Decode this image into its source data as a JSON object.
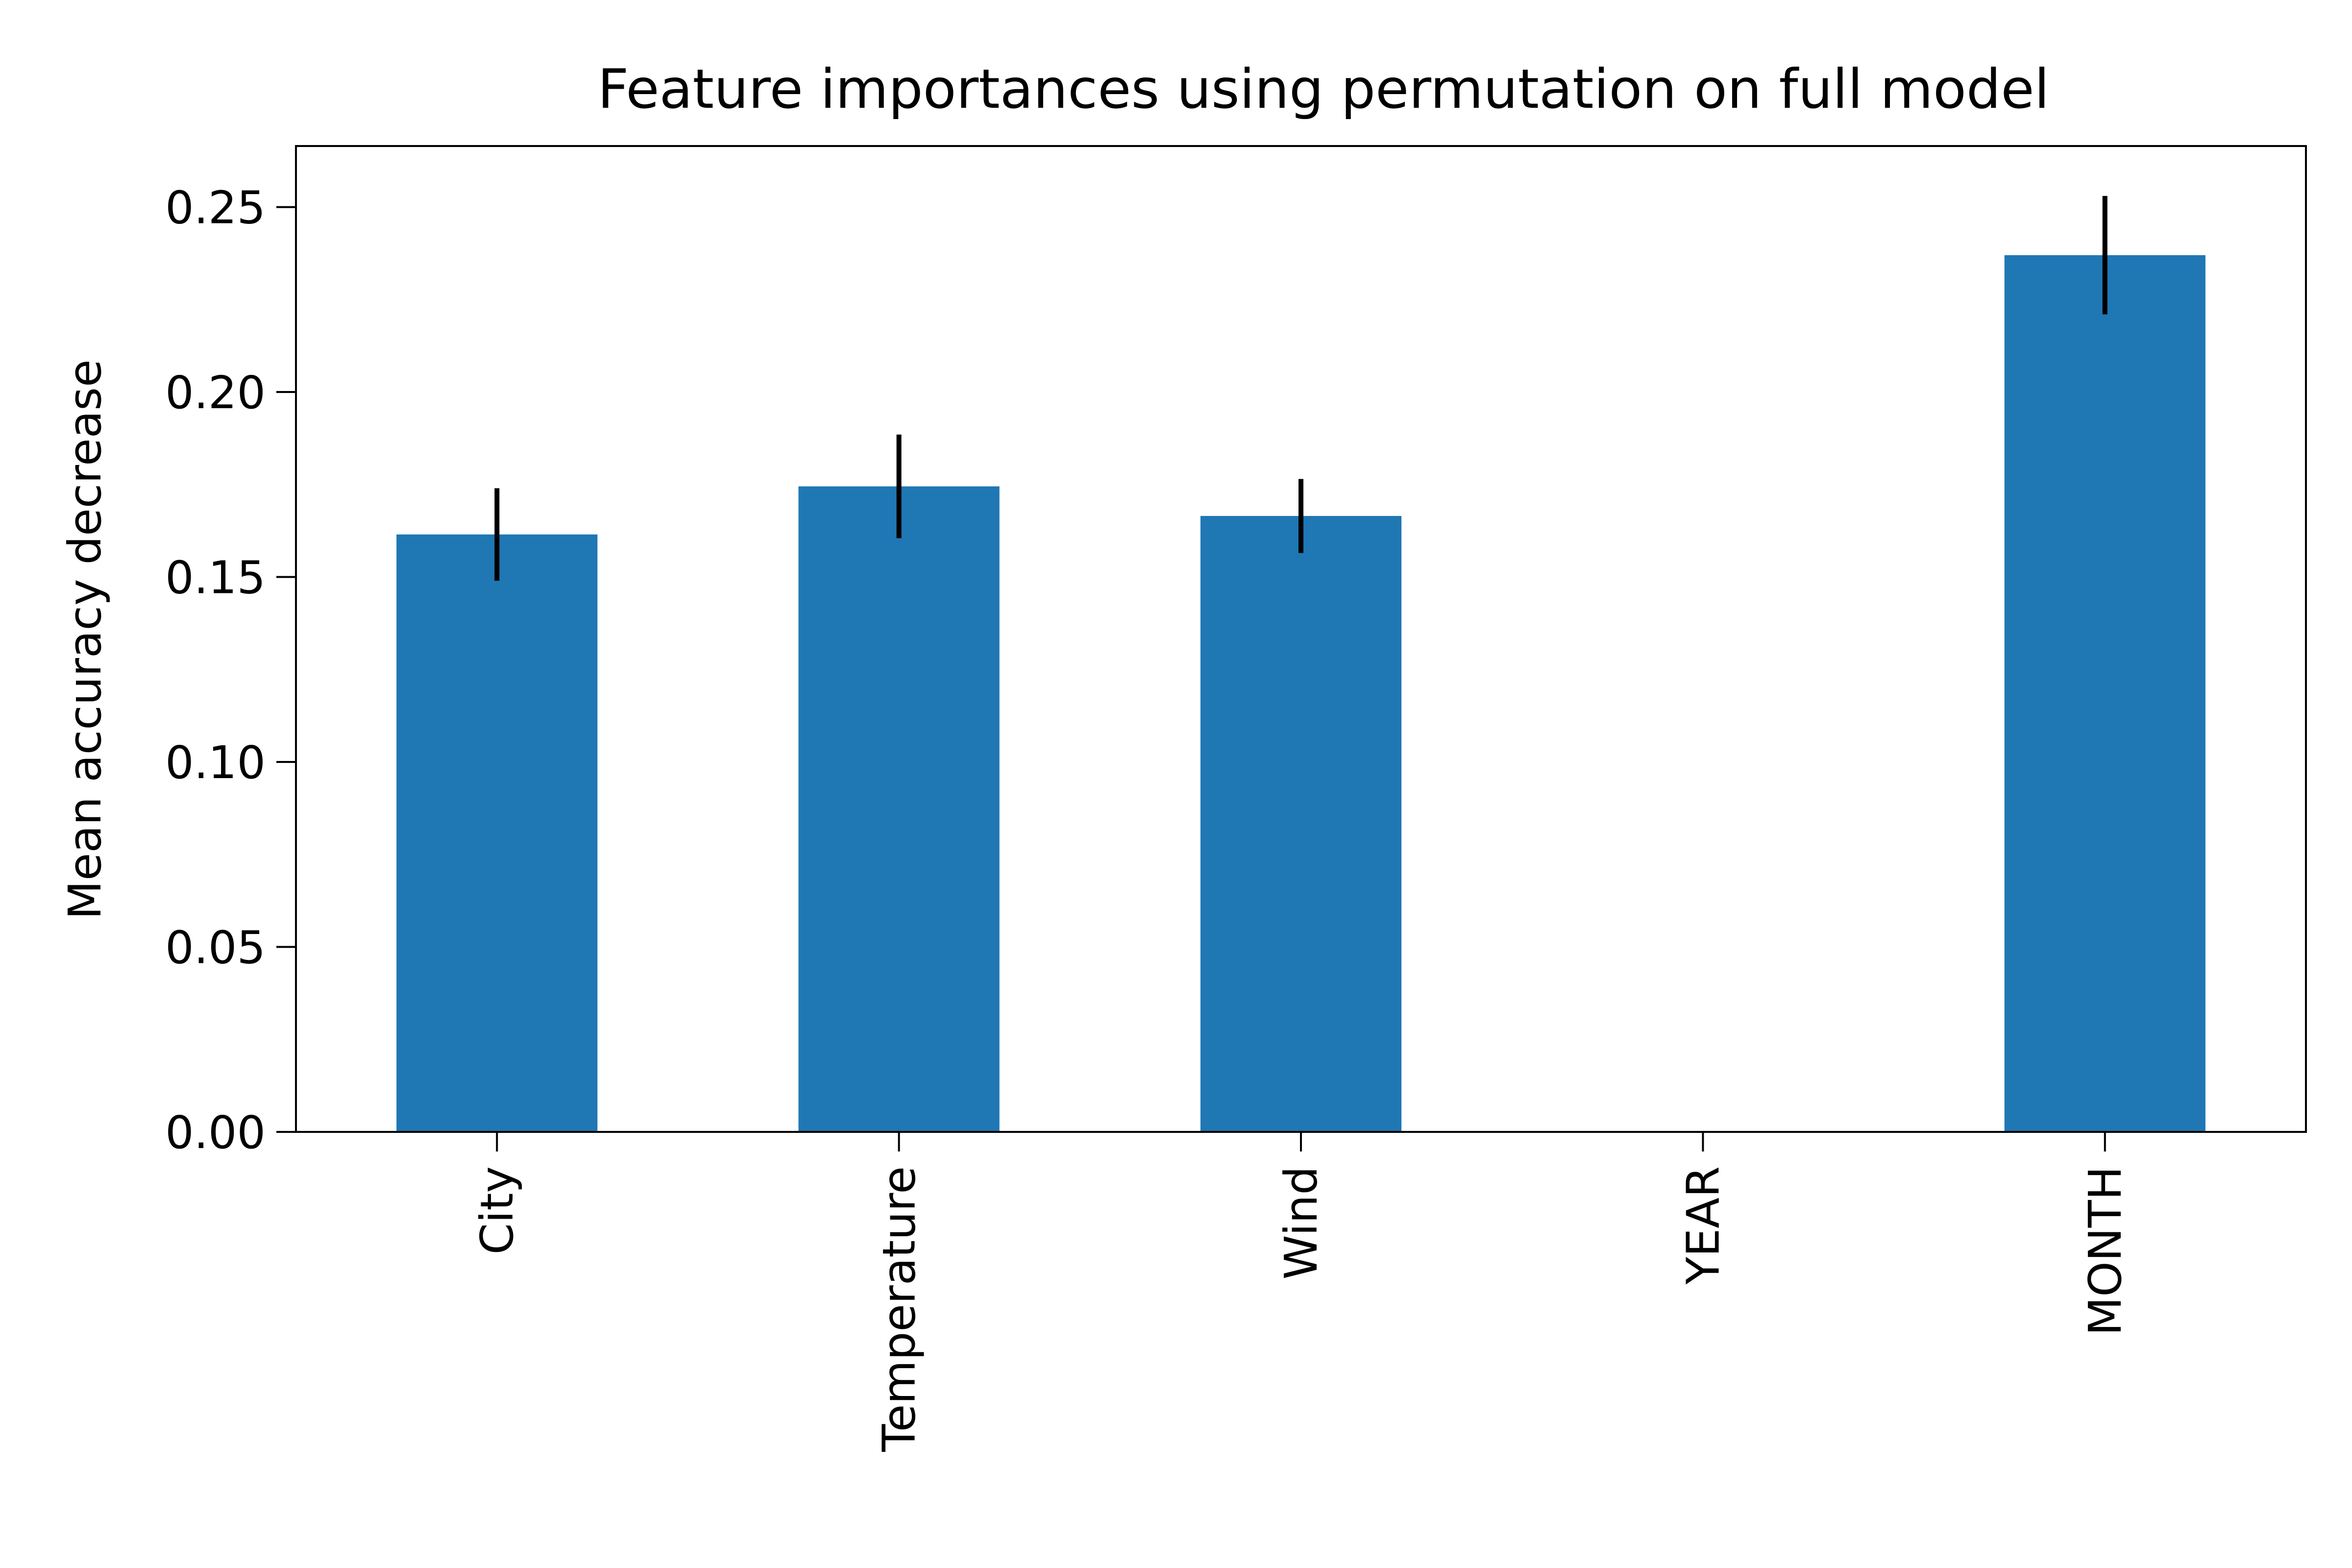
{
  "chart_data": {
    "type": "bar",
    "title": "Feature importances using permutation on full model",
    "xlabel": "",
    "ylabel": "Mean accuracy decrease",
    "categories": [
      "City",
      "Temperature",
      "Wind",
      "YEAR",
      "MONTH"
    ],
    "values": [
      0.1615,
      0.1745,
      0.1665,
      0.0,
      0.237
    ],
    "errors": [
      0.0125,
      0.014,
      0.01,
      0.0,
      0.016
    ],
    "ylim": [
      0,
      0.2665
    ],
    "yticks": [
      "0.00",
      "0.05",
      "0.10",
      "0.15",
      "0.20",
      "0.25"
    ],
    "ytick_values": [
      0,
      0.05,
      0.1,
      0.15,
      0.2,
      0.25
    ],
    "grid": false,
    "legend": "none",
    "bar_color": "#1f77b4",
    "error_color": "#000000",
    "axis_color": "#000000"
  }
}
